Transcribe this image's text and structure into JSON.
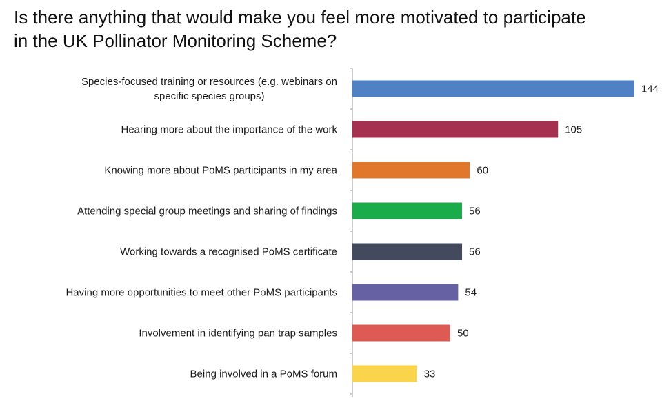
{
  "chart_data": {
    "type": "bar",
    "orientation": "horizontal",
    "title_lines": [
      "Is there anything that would make you feel more motivated to participate",
      "in the UK Pollinator Monitoring Scheme?"
    ],
    "categories": [
      [
        "Species-focused training or resources (e.g. webinars on",
        "specific species groups)"
      ],
      [
        "Hearing more about the importance of the work"
      ],
      [
        "Knowing more about PoMS participants in my area"
      ],
      [
        "Attending special group meetings and sharing of findings"
      ],
      [
        "Working towards a recognised PoMS certificate"
      ],
      [
        "Having more opportunities to meet other PoMS participants"
      ],
      [
        "Involvement in identifying pan trap samples"
      ],
      [
        "Being involved in a PoMS forum"
      ]
    ],
    "values": [
      144,
      105,
      60,
      56,
      56,
      54,
      50,
      33
    ],
    "data_labels": [
      "144",
      "105",
      "60",
      "56",
      "56",
      "54",
      "50",
      "33"
    ],
    "colors": [
      "#4f81c4",
      "#a6304f",
      "#e0772b",
      "#1aab4b",
      "#434a5e",
      "#6661a3",
      "#dd5b52",
      "#fad54c"
    ],
    "axis_color": "#9a9a9a",
    "xlim": [
      0,
      144
    ],
    "grid": false,
    "legend": "none"
  }
}
